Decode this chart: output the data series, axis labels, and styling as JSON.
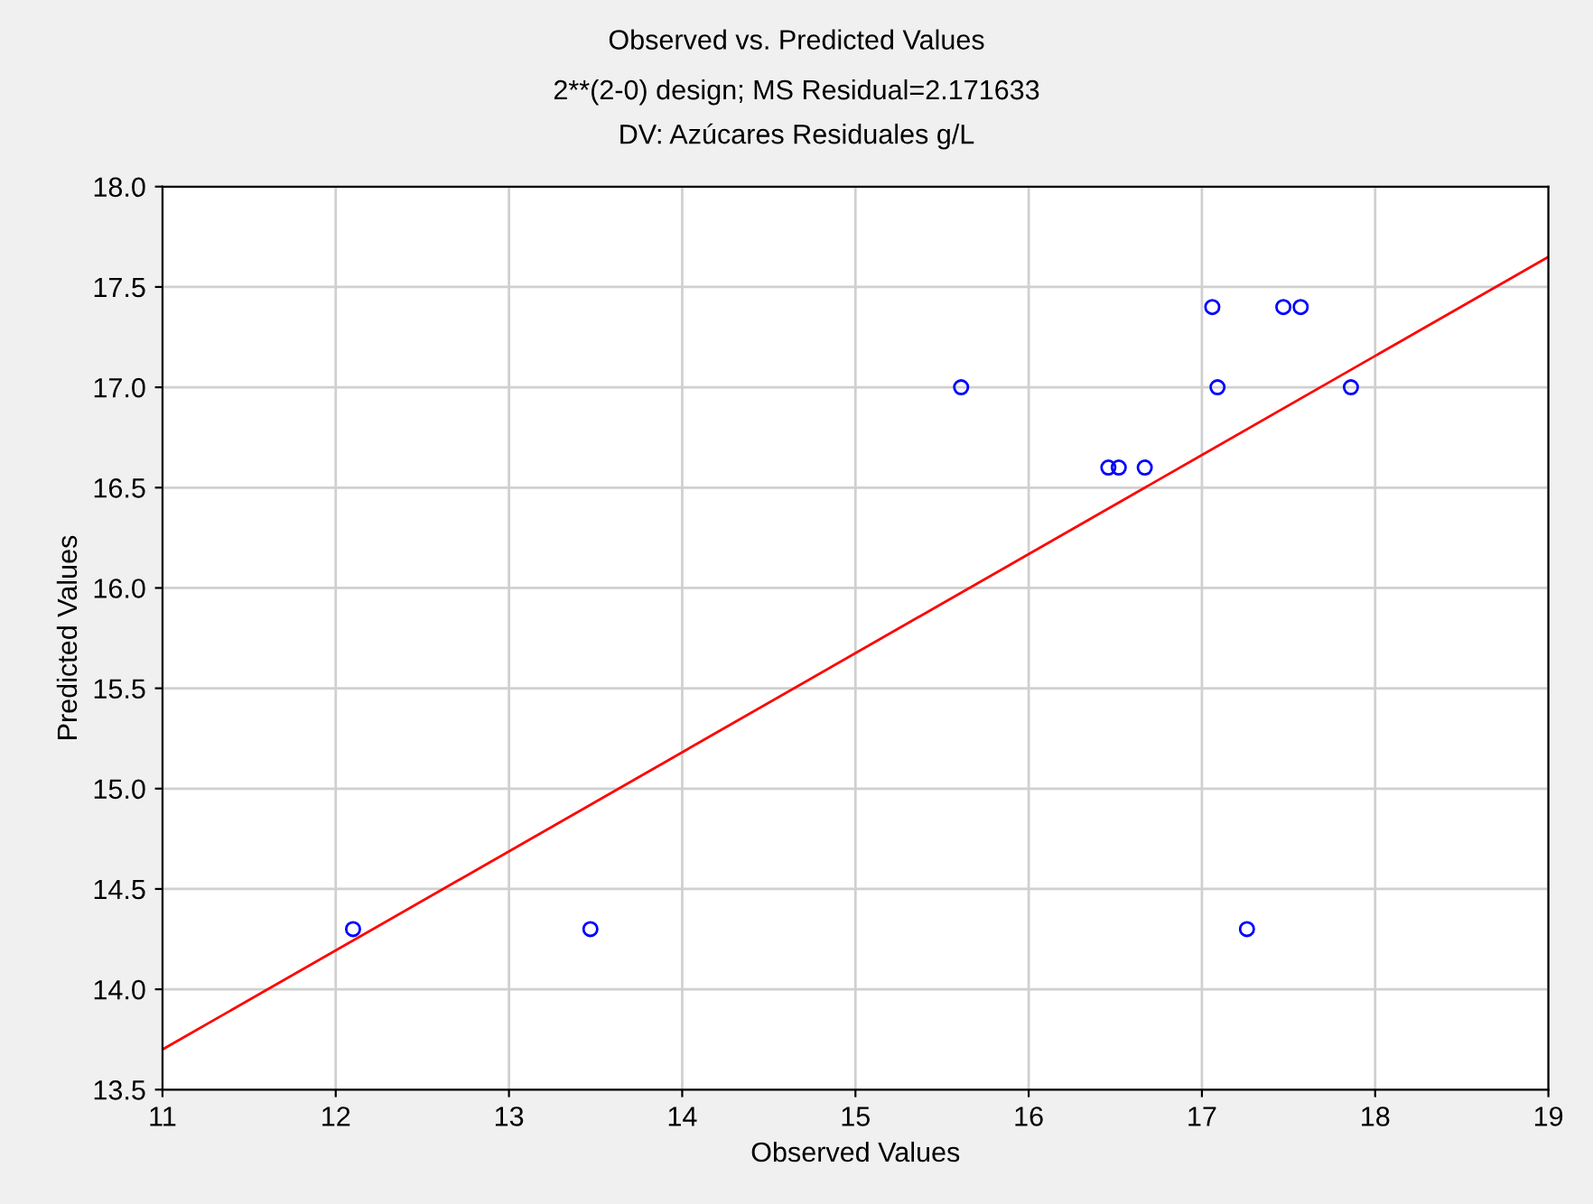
{
  "chart_data": {
    "type": "scatter",
    "title": "Observed vs. Predicted Values",
    "subtitle": "2**(2-0) design; MS Residual=2.171633\nDV: Azúcares Residuales g/L",
    "xlabel": "Observed Values",
    "ylabel": "Predicted Values",
    "series": [
      {
        "color": "#0000ff",
        "marker": "circle",
        "x": [
          12.1,
          13.47,
          17.26,
          15.61,
          16.46,
          16.52,
          16.67,
          17.06,
          17.47,
          17.57,
          17.09,
          17.86
        ],
        "values": [
          14.3,
          14.3,
          14.3,
          17.0,
          16.6,
          16.6,
          16.6,
          17.4,
          17.4,
          17.4,
          17.0,
          17.0
        ]
      },
      {
        "type": "line",
        "color": "#ff0000",
        "x": [
          11,
          19
        ],
        "values": [
          13.7,
          17.65
        ]
      }
    ],
    "xlim": [
      11,
      19
    ],
    "xticks": [
      11,
      12,
      13,
      14,
      15,
      16,
      17,
      18,
      19
    ],
    "ylim": [
      13.5,
      18.0
    ],
    "yticks": [
      {
        "value": 13.5,
        "label": "13.5"
      },
      {
        "value": 14.0,
        "label": "14.0"
      },
      {
        "value": 14.5,
        "label": "14.5"
      },
      {
        "value": 15.0,
        "label": "15.0"
      },
      {
        "value": 15.5,
        "label": "15.5"
      },
      {
        "value": 16.0,
        "label": "16.0"
      },
      {
        "value": 16.5,
        "label": "16.5"
      },
      {
        "value": 17.0,
        "label": "17.0"
      },
      {
        "value": 17.5,
        "label": "17.5"
      },
      {
        "value": 18.0,
        "label": "18.0"
      }
    ],
    "grid": true
  }
}
